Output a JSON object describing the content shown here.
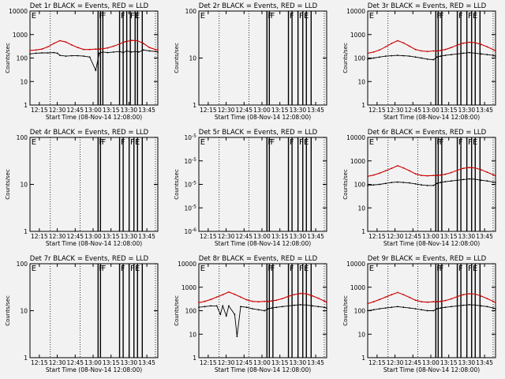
{
  "chart_data": [
    {
      "type": "line",
      "title": "Det 1r BLACK = Events, RED = LLD",
      "xlabel": "Start Time (08-Nov-14 12:08:00)",
      "ylabel": "Counts/sec",
      "yscale": "log",
      "ylim": [
        1,
        10000
      ],
      "yticks": [
        "1",
        "10",
        "100",
        "1000",
        "10000"
      ],
      "xticks": [
        "12:15",
        "12:30",
        "12:45",
        "13:00",
        "13:15",
        "13:30",
        "13:45"
      ],
      "xlim_minutes": [
        5,
        112
      ],
      "dotted_lines": [
        22,
        110
      ],
      "flags": [
        "E",
        "F",
        "F",
        "F",
        "F",
        "E"
      ],
      "flag_lines": [
        62,
        64,
        66,
        80,
        83,
        86,
        89,
        93,
        95,
        99
      ],
      "series": [
        {
          "color": "#000000",
          "x": [
            5,
            10,
            15,
            20,
            25,
            28,
            30,
            35,
            40,
            45,
            50,
            55,
            60,
            63,
            66,
            70,
            75,
            80,
            83,
            86,
            90,
            93,
            96,
            100,
            105,
            110,
            112
          ],
          "y": [
            150,
            160,
            165,
            165,
            170,
            160,
            130,
            120,
            125,
            125,
            120,
            110,
            30,
            160,
            180,
            170,
            180,
            190,
            170,
            200,
            180,
            190,
            180,
            220,
            200,
            190,
            180
          ]
        },
        {
          "color": "#cc0000",
          "x": [
            5,
            10,
            15,
            20,
            25,
            30,
            35,
            40,
            45,
            50,
            55,
            60,
            63,
            66,
            70,
            75,
            80,
            85,
            90,
            95,
            100,
            105,
            110,
            112
          ],
          "y": [
            210,
            220,
            240,
            300,
            420,
            550,
            480,
            360,
            280,
            230,
            230,
            240,
            240,
            250,
            270,
            320,
            400,
            500,
            560,
            550,
            420,
            280,
            230,
            220
          ]
        }
      ]
    },
    {
      "type": "line",
      "title": "Det 2r BLACK = Events, RED = LLD",
      "xlabel": "Start Time (08-Nov-14 12:08:00)",
      "ylabel": "Counts/sec",
      "yscale": "log",
      "ylim": [
        1,
        100
      ],
      "yticks": [
        "1",
        "10",
        "100"
      ],
      "xticks": [
        "12:15",
        "12:30",
        "12:45",
        "13:00",
        "13:15",
        "13:30",
        "13:45"
      ],
      "xlim_minutes": [
        5,
        112
      ],
      "dotted_lines": [
        22,
        47,
        110
      ],
      "flags": [
        "E",
        "F",
        "F",
        "F",
        "F",
        "E"
      ],
      "flag_lines": [
        62,
        64,
        80,
        83,
        88,
        92,
        95,
        99
      ],
      "series": []
    },
    {
      "type": "line",
      "title": "Det 3r BLACK = Events, RED = LLD",
      "xlabel": "Start Time (08-Nov-14 12:08:00)",
      "ylabel": "Counts/sec",
      "yscale": "log",
      "ylim": [
        1,
        10000
      ],
      "yticks": [
        "1",
        "10",
        "100",
        "1000",
        "10000"
      ],
      "xticks": [
        "12:15",
        "12:30",
        "12:45",
        "13:00",
        "13:15",
        "13:30",
        "13:45"
      ],
      "xlim_minutes": [
        5,
        112
      ],
      "dotted_lines": [
        22,
        110
      ],
      "flags": [
        "E",
        "F",
        "F",
        "F",
        "F",
        "E"
      ],
      "flag_lines": [
        62,
        64,
        67,
        80,
        83,
        88,
        92,
        95,
        99
      ],
      "series": [
        {
          "color": "#000000",
          "x": [
            5,
            10,
            15,
            20,
            25,
            30,
            35,
            40,
            45,
            50,
            55,
            60,
            63,
            66,
            70,
            75,
            80,
            85,
            90,
            95,
            100,
            105,
            110,
            112
          ],
          "y": [
            90,
            100,
            110,
            120,
            125,
            130,
            125,
            120,
            110,
            100,
            90,
            85,
            110,
            120,
            130,
            140,
            150,
            160,
            170,
            160,
            150,
            140,
            130,
            120
          ]
        },
        {
          "color": "#cc0000",
          "x": [
            5,
            10,
            15,
            20,
            25,
            30,
            35,
            40,
            45,
            50,
            55,
            60,
            63,
            66,
            70,
            75,
            80,
            85,
            90,
            95,
            100,
            105,
            110,
            112
          ],
          "y": [
            160,
            180,
            220,
            300,
            420,
            550,
            440,
            320,
            230,
            200,
            190,
            200,
            200,
            210,
            230,
            280,
            360,
            430,
            470,
            450,
            380,
            300,
            230,
            200
          ]
        }
      ]
    },
    {
      "type": "line",
      "title": "Det 4r BLACK = Events, RED = LLD",
      "xlabel": "Start Time (08-Nov-14 12:08:00)",
      "ylabel": "Counts/sec",
      "yscale": "log",
      "ylim": [
        1,
        100
      ],
      "yticks": [
        "1",
        "10",
        "100"
      ],
      "xticks": [
        "12:15",
        "12:30",
        "12:45",
        "13:00",
        "13:15",
        "13:30",
        "13:45"
      ],
      "xlim_minutes": [
        5,
        112
      ],
      "dotted_lines": [
        22,
        47,
        110
      ],
      "flags": [
        "E",
        "F",
        "F",
        "F",
        "F",
        "E"
      ],
      "flag_lines": [
        62,
        64,
        80,
        83,
        88,
        92,
        95,
        99
      ],
      "series": []
    },
    {
      "type": "line",
      "title": "Det 5r BLACK = Events, RED = LLD",
      "xlabel": "Start Time (08-Nov-14 12:08:00)",
      "ylabel": "Counts/sec",
      "yscale": "log",
      "ylim": [
        1e-06,
        1e-05
      ],
      "yticks": [
        "10^-6",
        "10^-5",
        "10^-5",
        "10^-5",
        "10^-5"
      ],
      "xticks": [
        "12:15",
        "12:30",
        "12:45",
        "13:00",
        "13:15",
        "13:30",
        "13:45"
      ],
      "xlim_minutes": [
        5,
        112
      ],
      "dotted_lines": [
        22,
        47,
        110
      ],
      "flags": [
        "E",
        "F",
        "F",
        "F",
        "F",
        "E"
      ],
      "flag_lines": [
        62,
        64,
        80,
        83,
        88,
        92,
        95,
        99
      ],
      "series": []
    },
    {
      "type": "line",
      "title": "Det 6r BLACK = Events, RED = LLD",
      "xlabel": "Start Time (08-Nov-14 12:08:00)",
      "ylabel": "Counts/sec",
      "yscale": "log",
      "ylim": [
        1,
        10000
      ],
      "yticks": [
        "1",
        "10",
        "100",
        "1000",
        "10000"
      ],
      "xticks": [
        "12:15",
        "12:30",
        "12:45",
        "13:00",
        "13:15",
        "13:30",
        "13:45"
      ],
      "xlim_minutes": [
        5,
        112
      ],
      "dotted_lines": [
        22,
        47,
        110
      ],
      "flags": [
        "E",
        "F",
        "F",
        "F",
        "F",
        "E"
      ],
      "flag_lines": [
        62,
        64,
        67,
        80,
        83,
        88,
        92,
        95,
        99
      ],
      "series": [
        {
          "color": "#000000",
          "x": [
            5,
            10,
            15,
            20,
            25,
            30,
            35,
            40,
            45,
            50,
            55,
            60,
            63,
            66,
            70,
            75,
            80,
            85,
            90,
            95,
            100,
            105,
            110,
            112
          ],
          "y": [
            90,
            95,
            100,
            110,
            120,
            125,
            120,
            115,
            105,
            95,
            90,
            90,
            110,
            120,
            130,
            140,
            150,
            160,
            170,
            165,
            150,
            140,
            125,
            120
          ]
        },
        {
          "color": "#cc0000",
          "x": [
            5,
            10,
            15,
            20,
            25,
            30,
            35,
            40,
            45,
            50,
            55,
            60,
            63,
            66,
            70,
            75,
            80,
            85,
            90,
            95,
            100,
            105,
            110,
            112
          ],
          "y": [
            220,
            250,
            300,
            380,
            480,
            620,
            500,
            380,
            280,
            240,
            230,
            240,
            240,
            250,
            270,
            320,
            400,
            480,
            520,
            500,
            420,
            330,
            260,
            230
          ]
        }
      ]
    },
    {
      "type": "line",
      "title": "Det 7r BLACK = Events, RED = LLD",
      "xlabel": "Start Time (08-Nov-14 12:08:00)",
      "ylabel": "Counts/sec",
      "yscale": "log",
      "ylim": [
        1,
        100
      ],
      "yticks": [
        "1",
        "10",
        "100"
      ],
      "xticks": [
        "12:15",
        "12:30",
        "12:45",
        "13:00",
        "13:15",
        "13:30",
        "13:45"
      ],
      "xlim_minutes": [
        5,
        112
      ],
      "dotted_lines": [
        22,
        47,
        110
      ],
      "flags": [
        "E",
        "F",
        "F",
        "F",
        "F",
        "E"
      ],
      "flag_lines": [
        62,
        64,
        80,
        83,
        88,
        92,
        95,
        99
      ],
      "series": []
    },
    {
      "type": "line",
      "title": "Det 8r BLACK = Events, RED = LLD",
      "xlabel": "Start Time (08-Nov-14 12:08:00)",
      "ylabel": "Counts/sec",
      "yscale": "log",
      "ylim": [
        1,
        10000
      ],
      "yticks": [
        "1",
        "10",
        "100",
        "1000",
        "10000"
      ],
      "xticks": [
        "12:15",
        "12:30",
        "12:45",
        "13:00",
        "13:15",
        "13:30",
        "13:45"
      ],
      "xlim_minutes": [
        5,
        112
      ],
      "dotted_lines": [
        22,
        47,
        110
      ],
      "flags": [
        "E",
        "F",
        "F",
        "F",
        "F",
        "E"
      ],
      "flag_lines": [
        62,
        64,
        67,
        80,
        83,
        88,
        92,
        95,
        99
      ],
      "series": [
        {
          "color": "#000000",
          "x": [
            5,
            10,
            15,
            20,
            23,
            25,
            28,
            30,
            35,
            37,
            40,
            45,
            50,
            55,
            60,
            63,
            66,
            70,
            75,
            80,
            85,
            90,
            95,
            100,
            105,
            110,
            112
          ],
          "y": [
            140,
            150,
            160,
            160,
            70,
            160,
            60,
            160,
            70,
            8,
            150,
            140,
            120,
            110,
            100,
            120,
            130,
            140,
            150,
            160,
            170,
            180,
            175,
            160,
            150,
            140,
            130
          ]
        },
        {
          "color": "#cc0000",
          "x": [
            5,
            10,
            15,
            20,
            25,
            30,
            35,
            40,
            45,
            50,
            55,
            60,
            63,
            66,
            70,
            75,
            80,
            85,
            90,
            95,
            100,
            105,
            110,
            112
          ],
          "y": [
            220,
            250,
            300,
            380,
            480,
            620,
            500,
            380,
            290,
            250,
            240,
            250,
            250,
            260,
            280,
            330,
            410,
            490,
            540,
            520,
            430,
            340,
            260,
            230
          ]
        }
      ]
    },
    {
      "type": "line",
      "title": "Det 9r BLACK = Events, RED = LLD",
      "xlabel": "Start Time (08-Nov-14 12:08:00)",
      "ylabel": "Counts/sec",
      "yscale": "log",
      "ylim": [
        1,
        10000
      ],
      "yticks": [
        "1",
        "10",
        "100",
        "1000",
        "10000"
      ],
      "xticks": [
        "12:15",
        "12:30",
        "12:45",
        "13:00",
        "13:15",
        "13:30",
        "13:45"
      ],
      "xlim_minutes": [
        5,
        112
      ],
      "dotted_lines": [
        22,
        47,
        110
      ],
      "flags": [
        "E",
        "F",
        "F",
        "F",
        "F",
        "E"
      ],
      "flag_lines": [
        62,
        64,
        67,
        80,
        83,
        88,
        92,
        95,
        99
      ],
      "series": [
        {
          "color": "#000000",
          "x": [
            5,
            10,
            15,
            20,
            25,
            30,
            35,
            40,
            45,
            50,
            55,
            60,
            63,
            66,
            70,
            75,
            80,
            85,
            90,
            95,
            100,
            105,
            110,
            112
          ],
          "y": [
            100,
            110,
            120,
            130,
            140,
            150,
            140,
            130,
            120,
            110,
            100,
            100,
            120,
            130,
            140,
            150,
            160,
            170,
            180,
            175,
            160,
            150,
            130,
            120
          ]
        },
        {
          "color": "#cc0000",
          "x": [
            5,
            10,
            15,
            20,
            25,
            30,
            35,
            40,
            45,
            50,
            55,
            60,
            63,
            66,
            70,
            75,
            80,
            85,
            90,
            95,
            100,
            105,
            110,
            112
          ],
          "y": [
            200,
            240,
            300,
            380,
            480,
            600,
            480,
            370,
            280,
            240,
            230,
            240,
            240,
            250,
            270,
            320,
            400,
            480,
            530,
            510,
            420,
            330,
            250,
            220
          ]
        }
      ]
    }
  ]
}
